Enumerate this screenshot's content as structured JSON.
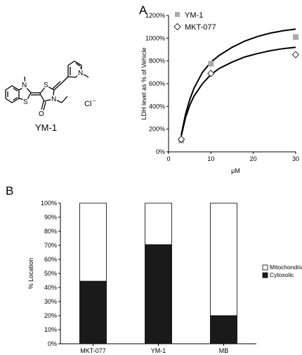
{
  "panels": {
    "a": "A",
    "b": "B"
  },
  "structure": {
    "name": "YM-1",
    "counterion": "Cl",
    "counterion_charge": "−",
    "n_methyl_label": "N",
    "pyridinium_label": "N",
    "pyridinium_charge": "+",
    "ring_n_label": "N",
    "s_label_1": "S",
    "s_label_2": "S",
    "o_label": "O"
  },
  "colors": {
    "ym1_marker": "#aaaaaa",
    "mkt_marker": "#ffffff",
    "cytosolic": "#1a1a1a",
    "mitochondrial": "#ffffff",
    "line": "#000000"
  },
  "chart_data": [
    {
      "type": "scatter",
      "title": "",
      "xlabel": "μM",
      "ylabel": "LDH level as % of Vehicle",
      "xlim": [
        0,
        30
      ],
      "ylim": [
        0,
        1200
      ],
      "x_ticks": [
        0,
        10,
        20,
        30
      ],
      "y_ticks": [
        0,
        200,
        400,
        600,
        800,
        1000,
        1200
      ],
      "y_tick_labels": [
        "0%",
        "200%",
        "400%",
        "600%",
        "800%",
        "1000%",
        "1200%"
      ],
      "grid": false,
      "legend_position": "top-left",
      "series": [
        {
          "name": "YM-1",
          "marker": "square",
          "x": [
            3,
            10,
            30
          ],
          "y": [
            100,
            775,
            1010
          ]
        },
        {
          "name": "MKT-077",
          "marker": "diamond",
          "x": [
            3,
            10,
            30
          ],
          "y": [
            110,
            690,
            855
          ]
        }
      ],
      "fit_curves": [
        {
          "x": [
            3,
            4,
            5,
            6,
            8,
            10,
            12,
            15,
            18,
            21,
            24,
            27,
            30
          ],
          "y": [
            150,
            330,
            460,
            560,
            700,
            790,
            850,
            920,
            975,
            1015,
            1045,
            1065,
            1080
          ]
        },
        {
          "x": [
            3,
            4,
            5,
            6,
            8,
            10,
            12,
            15,
            18,
            21,
            24,
            27,
            30
          ],
          "y": [
            140,
            300,
            410,
            490,
            600,
            680,
            735,
            790,
            835,
            865,
            890,
            908,
            920
          ]
        }
      ]
    },
    {
      "type": "bar",
      "stacked": true,
      "title": "",
      "xlabel": "",
      "ylabel": "% Location",
      "ylim": [
        0,
        100
      ],
      "y_ticks": [
        0,
        10,
        20,
        30,
        40,
        50,
        60,
        70,
        80,
        90,
        100
      ],
      "y_tick_labels": [
        "0%",
        "10%",
        "20%",
        "30%",
        "40%",
        "50%",
        "60%",
        "70%",
        "80%",
        "90%",
        "100%"
      ],
      "categories": [
        "MKT-077",
        "YM-1",
        "MB"
      ],
      "legend_position": "right",
      "legend_order": [
        "Mitochondrial",
        "Cytosolic"
      ],
      "series": [
        {
          "name": "Cytosolic",
          "values": [
            44.5,
            70.5,
            20
          ]
        },
        {
          "name": "Mitochondrial",
          "values": [
            55.5,
            29.5,
            80
          ]
        }
      ]
    }
  ]
}
